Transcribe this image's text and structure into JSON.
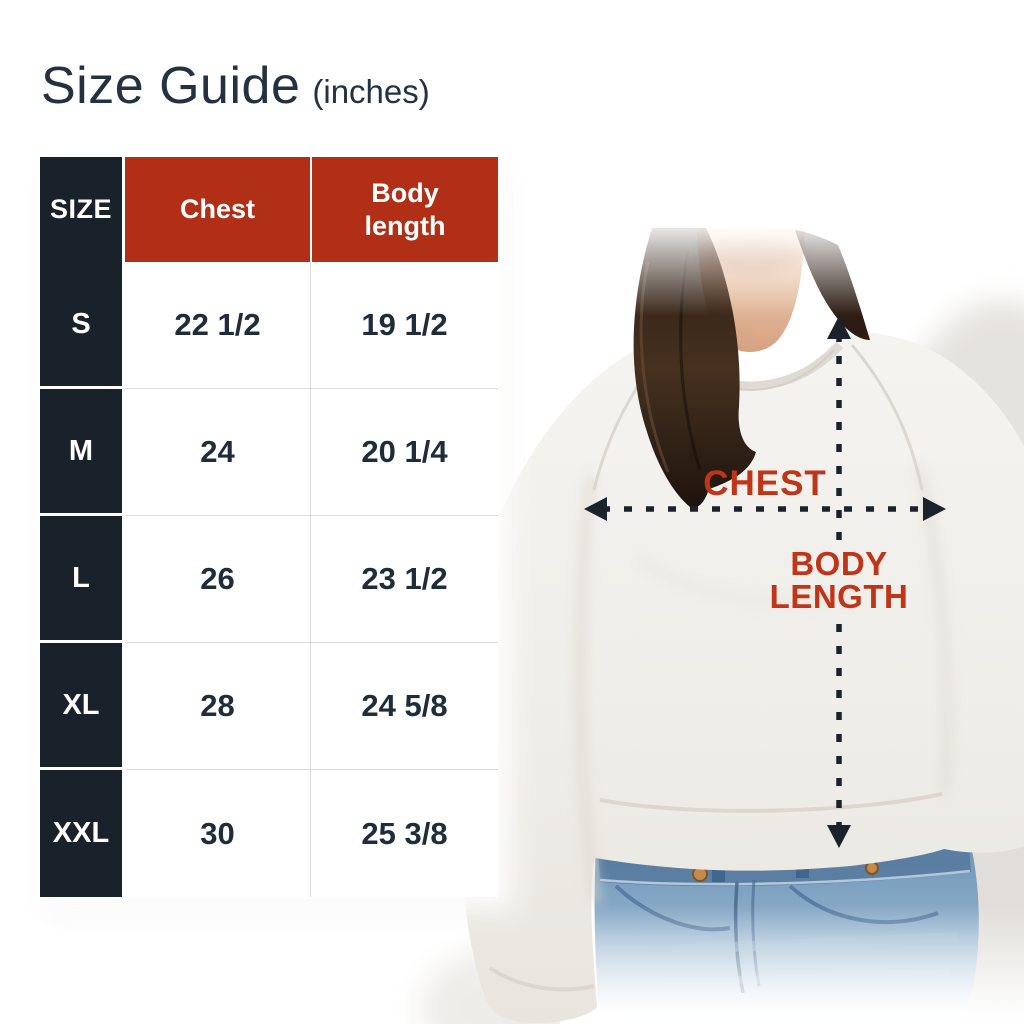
{
  "title": {
    "text": "Size Guide",
    "unit_note": "(inches)"
  },
  "size_table": {
    "headers": {
      "size": "SIZE",
      "chest": "Chest",
      "body_length": "Body length"
    },
    "rows": [
      {
        "size": "S",
        "chest": "22 1/2",
        "body_length": "19 1/2"
      },
      {
        "size": "M",
        "chest": "24",
        "body_length": "20 1/4"
      },
      {
        "size": "L",
        "chest": "26",
        "body_length": "23 1/2"
      },
      {
        "size": "XL",
        "chest": "28",
        "body_length": "24 5/8"
      },
      {
        "size": "XXL",
        "chest": "30",
        "body_length": "25 3/8"
      }
    ]
  },
  "measurement_diagram": {
    "chest_label": "CHEST",
    "body_length_line1": "BODY",
    "body_length_line2": "LENGTH"
  },
  "colors": {
    "header_red": "#b02f16",
    "header_dark": "#19212b",
    "title_navy": "#243140",
    "value_navy": "#1f2c3a",
    "label_red": "#c03418",
    "arrow_dark": "#1b222c"
  }
}
